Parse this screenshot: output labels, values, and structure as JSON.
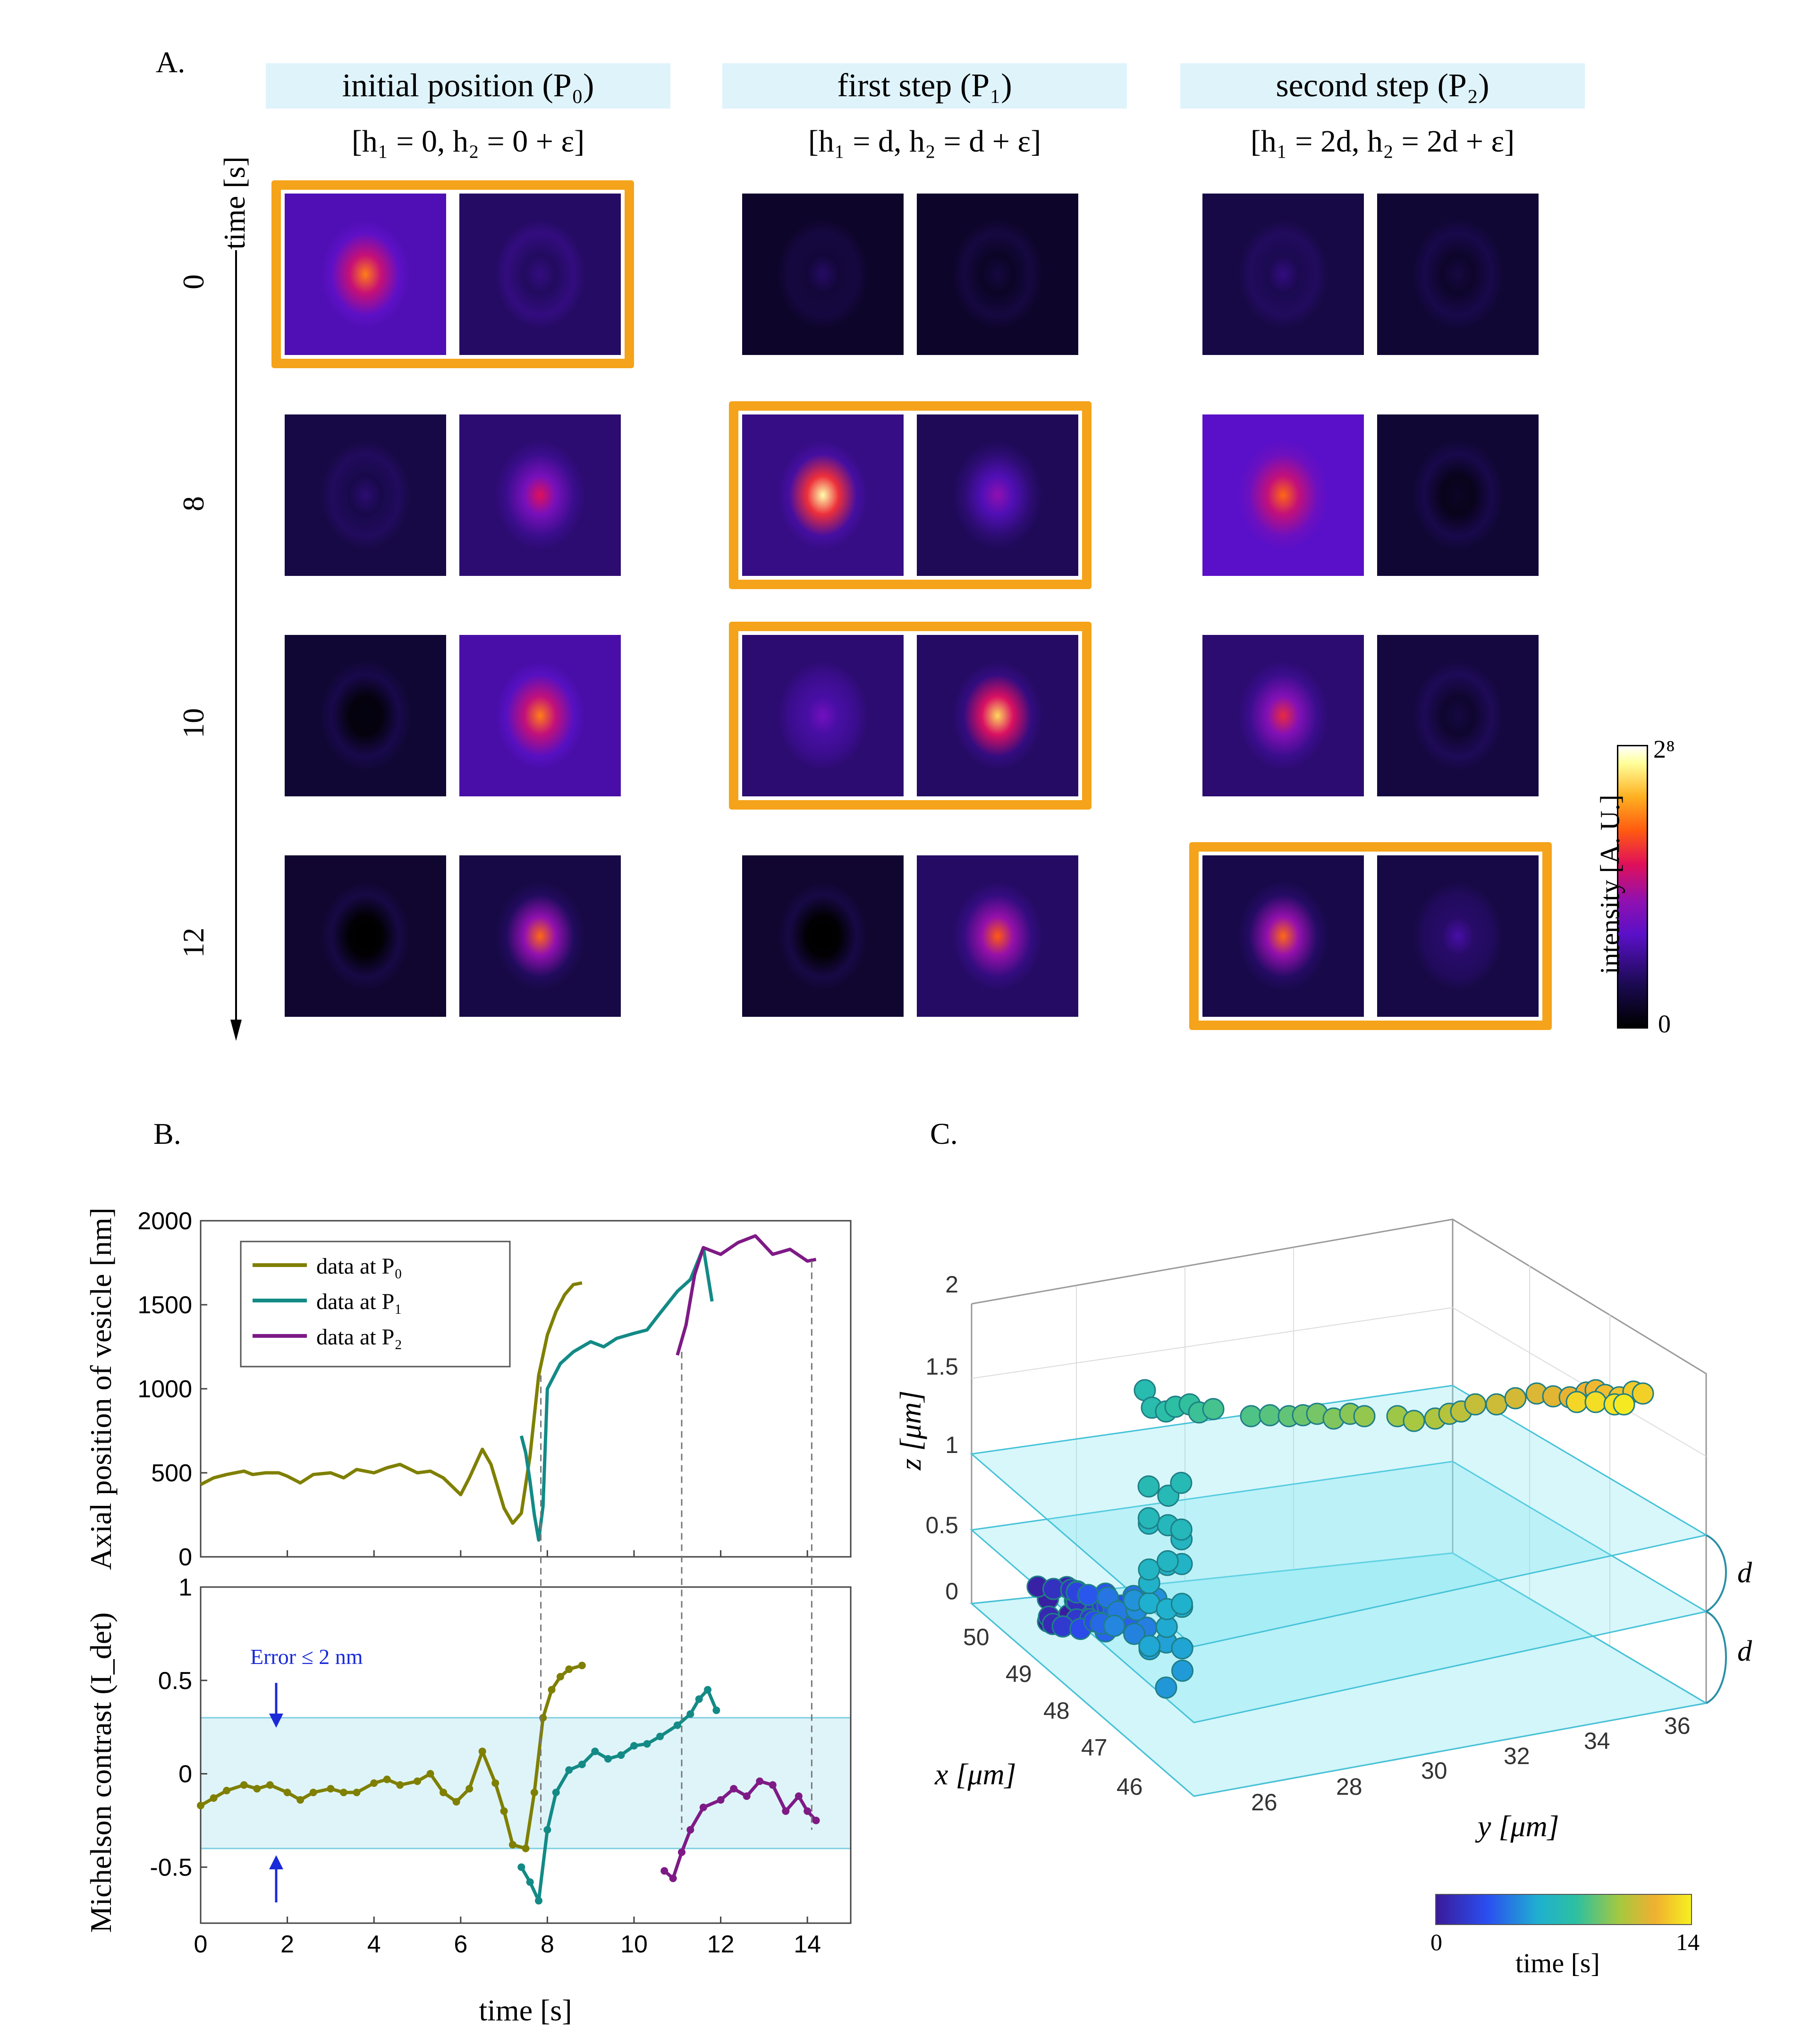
{
  "panelA": {
    "label": "A.",
    "columns": [
      {
        "title": "initial position (P₀)",
        "params": "[h₁ = 0, h₂ = 0 + ε]"
      },
      {
        "title": "first step  (P₁)",
        "params": "[h₁ = d, h₂ = d + ε]"
      },
      {
        "title": "second step  (P₂)",
        "params": "[h₁ = 2d, h₂ = 2d + ε]"
      }
    ],
    "time_axis_label": "time [s]",
    "rows": [
      "0",
      "8",
      "10",
      "12"
    ],
    "highlight": [
      0,
      1,
      1,
      2
    ],
    "tiles": [
      [
        [
          0.75,
          0.22
        ],
        [
          0.22,
          0.1
        ],
        [
          0.18,
          0.0
        ],
        [
          0.12,
          0.0
        ],
        [
          0.22,
          0.05
        ],
        [
          0.12,
          0.02
        ]
      ],
      [
        [
          0.2,
          0.05
        ],
        [
          0.58,
          0.12
        ],
        [
          0.95,
          0.15
        ],
        [
          0.45,
          0.08
        ],
        [
          0.72,
          0.25
        ],
        [
          0.07,
          0.02
        ]
      ],
      [
        [
          0.03,
          0.02
        ],
        [
          0.75,
          0.2
        ],
        [
          0.38,
          0.12
        ],
        [
          0.88,
          0.1
        ],
        [
          0.62,
          0.12
        ],
        [
          0.12,
          0.04
        ]
      ],
      [
        [
          0.0,
          0.01
        ],
        [
          0.72,
          0.05
        ],
        [
          0.0,
          0.01
        ],
        [
          0.7,
          0.1
        ],
        [
          0.72,
          0.06
        ],
        [
          0.28,
          0.05
        ]
      ]
    ],
    "colorbar": {
      "label": "intensity [A. U.]",
      "max": "2⁸",
      "min": "0"
    }
  },
  "panelB": {
    "label": "B.",
    "top_chart": {
      "ylabel": "Axial position of vesicle [nm]",
      "ylim": [
        0,
        2000
      ],
      "yticks": [
        "0",
        "500",
        "1000",
        "1500",
        "2000"
      ],
      "legend": [
        "data at P₀",
        "data at P₁",
        "data at P₂"
      ]
    },
    "bottom_chart": {
      "ylabel": "Michelson contrast (I_det)",
      "ylim": [
        -0.8,
        1
      ],
      "yticks": [
        "-0.5",
        "0",
        "0.5",
        "1"
      ],
      "band": [
        -0.4,
        0.3
      ],
      "annotation": "Error ≤ 2 nm"
    },
    "xlabel": "time [s]",
    "xticks": [
      "0",
      "2",
      "4",
      "6",
      "8",
      "10",
      "12",
      "14"
    ],
    "xlim": [
      0,
      15
    ]
  },
  "panelC": {
    "label": "C.",
    "zlabel": "z [μm]",
    "xlabel": "x [μm]",
    "ylabel": "y [μm]",
    "zticks": [
      "0",
      "0.5",
      "1",
      "1.5",
      "2"
    ],
    "xticks": [
      "46",
      "47",
      "48",
      "49",
      "50"
    ],
    "yticks": [
      "26",
      "28",
      "30",
      "32",
      "34",
      "36"
    ],
    "plane_label": "d",
    "colorbar": {
      "label": "time [s]",
      "min": "0",
      "max": "14"
    }
  },
  "colors": {
    "p0": "#7f7f00",
    "p1": "#138a86",
    "p2": "#7e1a86",
    "highlight": "#f5a31a",
    "band": "#dff4f9"
  },
  "chart_data": [
    {
      "type": "line",
      "title": "Axial position of vesicle",
      "xlabel": "time [s]",
      "ylabel": "Axial position of vesicle [nm]",
      "xlim": [
        0,
        15
      ],
      "ylim": [
        0,
        2000
      ],
      "series": [
        {
          "name": "data at P₀",
          "x": [
            0,
            0.3,
            0.6,
            1,
            1.2,
            1.5,
            1.8,
            2,
            2.3,
            2.6,
            3,
            3.3,
            3.6,
            4,
            4.3,
            4.6,
            5,
            5.3,
            5.6,
            6,
            6.2,
            6.5,
            6.7,
            7,
            7.2,
            7.4,
            7.6,
            7.8,
            8,
            8.2,
            8.4,
            8.6,
            8.8
          ],
          "y": [
            430,
            470,
            490,
            510,
            490,
            500,
            500,
            480,
            440,
            490,
            500,
            470,
            520,
            500,
            530,
            550,
            500,
            510,
            470,
            370,
            470,
            640,
            550,
            290,
            200,
            260,
            600,
            1080,
            1320,
            1460,
            1560,
            1620,
            1630
          ]
        },
        {
          "name": "data at P₁",
          "x": [
            7.4,
            7.5,
            7.6,
            7.7,
            7.8,
            7.9,
            8,
            8.3,
            8.6,
            9,
            9.3,
            9.6,
            10,
            10.3,
            10.6,
            11,
            11.3,
            11.6,
            11.8
          ],
          "y": [
            720,
            620,
            450,
            250,
            100,
            300,
            1000,
            1150,
            1220,
            1280,
            1250,
            1300,
            1330,
            1350,
            1450,
            1580,
            1650,
            1840,
            1520
          ]
        },
        {
          "name": "data at P₂",
          "x": [
            11,
            11.2,
            11.4,
            11.6,
            12,
            12.4,
            12.8,
            13.2,
            13.6,
            14,
            14.2
          ],
          "y": [
            1200,
            1380,
            1680,
            1840,
            1800,
            1870,
            1910,
            1800,
            1830,
            1760,
            1770
          ]
        }
      ]
    },
    {
      "type": "line",
      "title": "Michelson contrast",
      "xlabel": "time [s]",
      "ylabel": "Michelson contrast (I_det)",
      "xlim": [
        0,
        15
      ],
      "ylim": [
        -0.8,
        1
      ],
      "series": [
        {
          "name": "data at P₀",
          "x": [
            0,
            0.3,
            0.6,
            1,
            1.3,
            1.6,
            2,
            2.3,
            2.6,
            3,
            3.3,
            3.6,
            4,
            4.3,
            4.6,
            5,
            5.3,
            5.6,
            5.9,
            6.2,
            6.5,
            6.8,
            7,
            7.2,
            7.5,
            7.7,
            7.9,
            8.1,
            8.3,
            8.5,
            8.8
          ],
          "y": [
            -0.17,
            -0.13,
            -0.09,
            -0.06,
            -0.08,
            -0.06,
            -0.1,
            -0.14,
            -0.1,
            -0.08,
            -0.1,
            -0.1,
            -0.05,
            -0.03,
            -0.06,
            -0.04,
            0.0,
            -0.1,
            -0.15,
            -0.08,
            0.12,
            -0.05,
            -0.2,
            -0.38,
            -0.4,
            -0.1,
            0.3,
            0.45,
            0.52,
            0.56,
            0.58
          ]
        },
        {
          "name": "data at P₁",
          "x": [
            7.4,
            7.6,
            7.8,
            8,
            8.2,
            8.5,
            8.8,
            9.1,
            9.4,
            9.7,
            10,
            10.3,
            10.6,
            11,
            11.3,
            11.5,
            11.7,
            11.9
          ],
          "y": [
            -0.5,
            -0.58,
            -0.68,
            -0.3,
            -0.1,
            0.02,
            0.05,
            0.12,
            0.08,
            0.1,
            0.15,
            0.16,
            0.2,
            0.26,
            0.32,
            0.4,
            0.45,
            0.34
          ]
        },
        {
          "name": "data at P₂",
          "x": [
            10.7,
            10.9,
            11.1,
            11.3,
            11.6,
            12,
            12.3,
            12.6,
            12.9,
            13.2,
            13.5,
            13.8,
            14,
            14.2
          ],
          "y": [
            -0.52,
            -0.56,
            -0.42,
            -0.3,
            -0.18,
            -0.14,
            -0.08,
            -0.12,
            -0.04,
            -0.06,
            -0.2,
            -0.12,
            -0.2,
            -0.25
          ]
        }
      ]
    }
  ]
}
